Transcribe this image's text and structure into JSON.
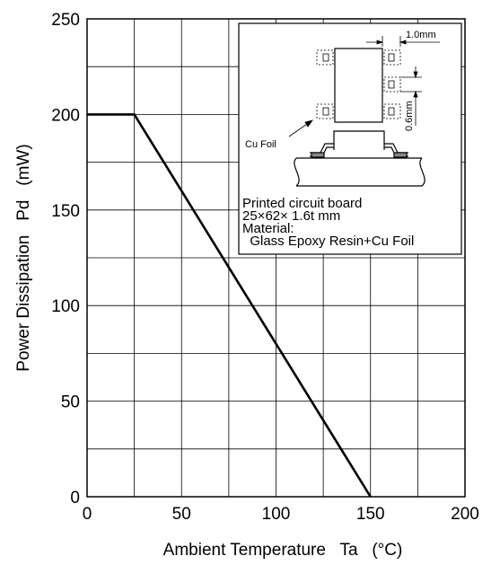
{
  "chart_data": {
    "type": "line",
    "xlabel": "Ambient Temperature   Ta   (°C)",
    "ylabel": "Power Dissipation   Pd   (mW)",
    "xlim": [
      0,
      200
    ],
    "ylim": [
      0,
      250
    ],
    "x_ticks": [
      "0",
      "50",
      "100",
      "150",
      "200"
    ],
    "y_ticks": [
      "0",
      "50",
      "100",
      "150",
      "200",
      "250"
    ],
    "grid": true,
    "series": [
      {
        "x": [
          0,
          25,
          150
        ],
        "y": [
          200,
          200,
          0
        ]
      }
    ],
    "inset": {
      "dim_width": "1.0mm",
      "dim_height": "0.6mm",
      "foil_label": "Cu Foil",
      "notes": [
        "Printed circuit board",
        "25×62× 1.6t mm",
        "Material:",
        "  Glass Epoxy Resin+Cu Foil"
      ]
    }
  }
}
